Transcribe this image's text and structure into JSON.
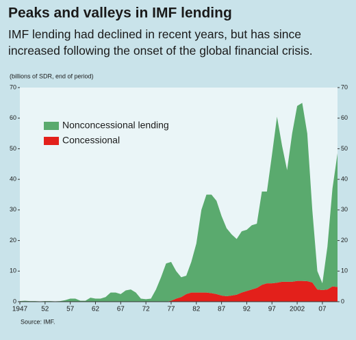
{
  "chart_data": {
    "type": "stacked_area",
    "title": "Peaks and valleys in IMF lending",
    "subtitle": "IMF lending had declined in recent years, but has since increased following the onset of the global financial crisis.",
    "y_label": "(billions of SDR, end of period)",
    "source": "Source: IMF.",
    "x": [
      1947,
      1948,
      1949,
      1950,
      1951,
      1952,
      1953,
      1954,
      1955,
      1956,
      1957,
      1958,
      1959,
      1960,
      1961,
      1962,
      1963,
      1964,
      1965,
      1966,
      1967,
      1968,
      1969,
      1970,
      1971,
      1972,
      1973,
      1974,
      1975,
      1976,
      1977,
      1978,
      1979,
      1980,
      1981,
      1982,
      1983,
      1984,
      1985,
      1986,
      1987,
      1988,
      1989,
      1990,
      1991,
      1992,
      1993,
      1994,
      1995,
      1996,
      1997,
      1998,
      1999,
      2000,
      2001,
      2002,
      2003,
      2004,
      2005,
      2006,
      2007,
      2008,
      2009,
      2010
    ],
    "series": [
      {
        "name": "Concessional",
        "color": "#e3201b",
        "values": [
          0,
          0,
          0,
          0,
          0,
          0,
          0,
          0,
          0,
          0,
          0,
          0,
          0,
          0,
          0,
          0,
          0,
          0,
          0,
          0,
          0,
          0,
          0,
          0,
          0,
          0,
          0,
          0,
          0,
          0,
          0.3,
          1,
          1.5,
          2.5,
          3,
          3,
          3,
          3,
          2.8,
          2.5,
          2,
          1.8,
          2,
          2.3,
          3,
          3.5,
          4,
          4.5,
          5.5,
          6,
          6,
          6.2,
          6.5,
          6.5,
          6.5,
          6.8,
          6.8,
          6.7,
          6.3,
          4,
          3.8,
          4,
          5,
          4.8
        ]
      },
      {
        "name": "Nonconcessional lending",
        "color": "#5aaa6e",
        "values": [
          0.2,
          0.3,
          0.2,
          0.2,
          0.1,
          0.2,
          0.2,
          0.1,
          0.2,
          0.5,
          1,
          1,
          0.3,
          0.3,
          1.3,
          1,
          1,
          1.5,
          3,
          3,
          2.5,
          3.7,
          4,
          3,
          1,
          0.8,
          1,
          4,
          8,
          12.5,
          12.7,
          9,
          6.5,
          6,
          10,
          16,
          27,
          32,
          32.2,
          30.5,
          26,
          22.2,
          20,
          18.2,
          20,
          20,
          21,
          21,
          30.5,
          30,
          42,
          54.3,
          44.5,
          36.5,
          48.5,
          57.2,
          58.2,
          48.3,
          23.7,
          6,
          2.2,
          14,
          32,
          43.7
        ]
      }
    ],
    "xlim": [
      1947,
      2010
    ],
    "xticks": [
      1947,
      {
        "value": 1952,
        "label": "52"
      },
      {
        "value": 1957,
        "label": "57"
      },
      {
        "value": 1962,
        "label": "62"
      },
      {
        "value": 1967,
        "label": "67"
      },
      {
        "value": 1972,
        "label": "72"
      },
      {
        "value": 1977,
        "label": "77"
      },
      {
        "value": 1982,
        "label": "82"
      },
      {
        "value": 1987,
        "label": "87"
      },
      {
        "value": 1992,
        "label": "92"
      },
      {
        "value": 1997,
        "label": "97"
      },
      2002,
      {
        "value": 2007,
        "label": "07"
      }
    ],
    "ylim": [
      0,
      70
    ],
    "yticks": [
      0,
      10,
      20,
      30,
      40,
      50,
      60,
      70
    ],
    "y2lim": [
      0,
      70
    ],
    "y2ticks": [
      0,
      10,
      20,
      30,
      40,
      50,
      60,
      70
    ],
    "legend": "upper left",
    "grid": false
  }
}
